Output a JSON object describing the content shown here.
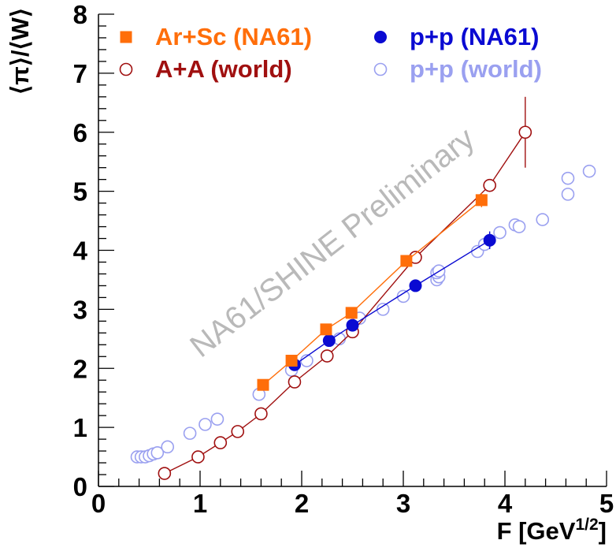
{
  "chart_data": {
    "type": "scatter",
    "title": "",
    "xlabel": "F [GeV",
    "xlabel_sup": "1/2",
    "xlabel_end": "]",
    "ylabel": "⟨π⟩/⟨W⟩",
    "xlim": [
      0,
      5
    ],
    "ylim": [
      0,
      8
    ],
    "xticks": [
      "0",
      "1",
      "2",
      "3",
      "4",
      "5"
    ],
    "yticks": [
      "0",
      "1",
      "2",
      "3",
      "4",
      "5",
      "6",
      "7",
      "8"
    ],
    "watermark": "NA61/SHINE Preliminary",
    "series": [
      {
        "name": "p+p (world)",
        "color": "#9aa0f0",
        "marker": "open-circle",
        "connected": false,
        "points": [
          [
            0.38,
            0.5
          ],
          [
            0.42,
            0.5
          ],
          [
            0.46,
            0.5
          ],
          [
            0.5,
            0.52
          ],
          [
            0.54,
            0.55
          ],
          [
            0.58,
            0.57
          ],
          [
            0.68,
            0.67
          ],
          [
            0.9,
            0.9
          ],
          [
            1.05,
            1.05
          ],
          [
            1.17,
            1.14
          ],
          [
            1.58,
            1.56
          ],
          [
            1.9,
            1.97
          ],
          [
            2.05,
            2.13
          ],
          [
            2.37,
            2.5
          ],
          [
            2.57,
            2.85
          ],
          [
            2.8,
            3.0
          ],
          [
            3.0,
            3.22
          ],
          [
            3.33,
            3.5
          ],
          [
            3.35,
            3.55
          ],
          [
            3.33,
            3.62
          ],
          [
            3.35,
            3.65
          ],
          [
            3.73,
            3.98
          ],
          [
            3.8,
            4.1
          ],
          [
            3.95,
            4.3
          ],
          [
            4.1,
            4.43
          ],
          [
            4.14,
            4.4
          ],
          [
            4.37,
            4.52
          ],
          [
            4.62,
            4.95
          ],
          [
            4.62,
            5.22
          ],
          [
            4.83,
            5.34
          ]
        ]
      },
      {
        "name": "A+A (world)",
        "color": "#a01010",
        "marker": "open-circle",
        "connected": true,
        "points": [
          [
            0.65,
            0.22
          ],
          [
            0.98,
            0.5
          ],
          [
            1.2,
            0.74
          ],
          [
            1.37,
            0.93
          ],
          [
            1.6,
            1.23
          ],
          [
            1.93,
            1.77
          ],
          [
            2.25,
            2.21
          ],
          [
            2.5,
            2.62
          ],
          [
            3.12,
            3.88
          ],
          [
            3.85,
            5.1
          ],
          [
            4.2,
            6.0
          ]
        ],
        "errors": [
          0,
          0,
          0,
          0,
          0,
          0,
          0,
          0,
          0,
          0.1,
          0.6
        ]
      },
      {
        "name": "p+p (NA61)",
        "color": "#0a0ad2",
        "marker": "filled-circle",
        "connected": true,
        "points": [
          [
            1.93,
            2.06
          ],
          [
            2.27,
            2.47
          ],
          [
            2.5,
            2.73
          ],
          [
            3.12,
            3.4
          ],
          [
            3.85,
            4.17
          ]
        ],
        "errors": [
          0,
          0,
          0,
          0,
          0.15
        ]
      },
      {
        "name": "Ar+Sc (NA61)",
        "color": "#ff6e0a",
        "marker": "filled-square",
        "connected": true,
        "points": [
          [
            1.62,
            1.72
          ],
          [
            1.9,
            2.13
          ],
          [
            2.24,
            2.66
          ],
          [
            2.49,
            2.94
          ],
          [
            3.03,
            3.82
          ],
          [
            3.77,
            4.85
          ]
        ],
        "errors": [
          0,
          0,
          0.08,
          0.08,
          0.1,
          0.12
        ]
      }
    ],
    "legend": [
      {
        "label": "Ar+Sc (NA61)",
        "color": "#ff6e0a",
        "marker": "filled-square"
      },
      {
        "label": "p+p (NA61)",
        "color": "#0a0ad2",
        "marker": "filled-circle"
      },
      {
        "label": "A+A (world)",
        "color": "#a01010",
        "marker": "open-circle"
      },
      {
        "label": "p+p (world)",
        "color": "#9aa0f0",
        "marker": "open-circle"
      }
    ]
  }
}
